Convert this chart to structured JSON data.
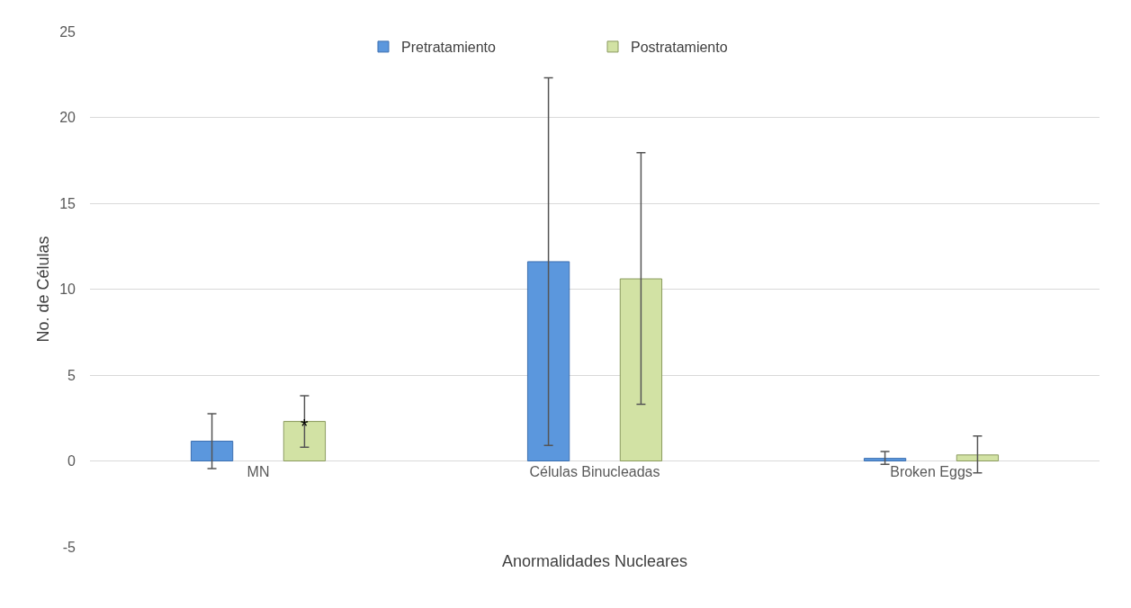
{
  "chart_data": {
    "type": "bar",
    "xlabel": "Anormalidades Nucleares",
    "ylabel": "No. de Células",
    "categories": [
      "MN",
      "Células Binucleadas",
      "Broken Eggs"
    ],
    "series": [
      {
        "name": "Pretratamiento",
        "color": "#5b97dd",
        "values": [
          1.15,
          11.6,
          0.15
        ],
        "errors": [
          [
            -0.45,
            2.75
          ],
          [
            0.9,
            22.3
          ],
          [
            -0.2,
            0.55
          ]
        ]
      },
      {
        "name": "Postratamiento",
        "color": "#d2e2a4",
        "values": [
          2.3,
          10.6,
          0.35
        ],
        "errors": [
          [
            0.8,
            3.8
          ],
          [
            3.3,
            17.95
          ],
          [
            -0.7,
            1.45
          ]
        ]
      }
    ],
    "annotations": [
      "*"
    ],
    "ylim": [
      -5,
      25
    ],
    "yticks": [
      -5,
      0,
      5,
      10,
      15,
      20,
      25
    ],
    "grid": "y",
    "legend": "top"
  }
}
